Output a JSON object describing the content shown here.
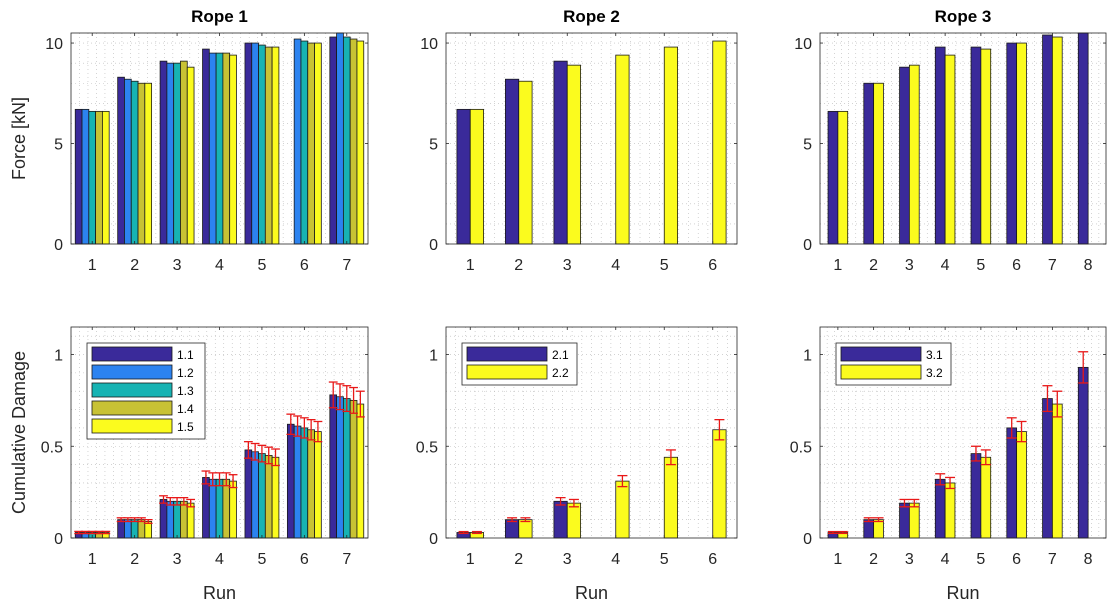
{
  "colors": {
    "1.1": "#3a2a9a",
    "1.2": "#2c83f0",
    "1.3": "#17b3b3",
    "1.4": "#c8c234",
    "1.5": "#fbfb1e",
    "2.1": "#3a2a9a",
    "2.2": "#fbfb1e",
    "3.1": "#3a2a9a",
    "3.2": "#fbfb1e",
    "errorbar": "#e81818"
  },
  "chart_data": [
    {
      "type": "bar",
      "title": "Rope 1",
      "xlabel": "",
      "ylabel": "Force [kN]",
      "categories": [
        "1",
        "2",
        "3",
        "4",
        "5",
        "6",
        "7"
      ],
      "xlim": [
        0.5,
        7.5
      ],
      "ylim": [
        0,
        10.5
      ],
      "yticks": [
        0,
        5,
        10
      ],
      "yticklabels": [
        "0",
        "5",
        "10"
      ],
      "grid": "minor dotted",
      "series": [
        {
          "key": "1.1",
          "values": [
            6.7,
            8.3,
            9.1,
            9.7,
            10.0,
            null,
            10.3
          ]
        },
        {
          "key": "1.2",
          "values": [
            6.7,
            8.2,
            9.0,
            9.5,
            10.0,
            10.2,
            10.5
          ]
        },
        {
          "key": "1.3",
          "values": [
            6.6,
            8.1,
            9.0,
            9.5,
            9.9,
            10.1,
            10.3
          ]
        },
        {
          "key": "1.4",
          "values": [
            6.6,
            8.0,
            9.1,
            9.5,
            9.8,
            10.0,
            10.2
          ]
        },
        {
          "key": "1.5",
          "values": [
            6.6,
            8.0,
            8.8,
            9.4,
            9.8,
            10.0,
            10.1
          ]
        }
      ]
    },
    {
      "type": "bar",
      "title": "Rope 2",
      "xlabel": "",
      "ylabel": "",
      "categories": [
        "1",
        "2",
        "3",
        "4",
        "5",
        "6"
      ],
      "xlim": [
        0.5,
        6.5
      ],
      "ylim": [
        0,
        10.5
      ],
      "yticks": [
        0,
        5,
        10
      ],
      "yticklabels": [
        "0",
        "5",
        "10"
      ],
      "grid": "minor dotted",
      "series": [
        {
          "key": "2.1",
          "values": [
            6.7,
            8.2,
            9.1,
            null,
            null,
            null
          ]
        },
        {
          "key": "2.2",
          "values": [
            6.7,
            8.1,
            8.9,
            9.4,
            9.8,
            10.1
          ]
        }
      ]
    },
    {
      "type": "bar",
      "title": "Rope 3",
      "xlabel": "",
      "ylabel": "",
      "categories": [
        "1",
        "2",
        "3",
        "4",
        "5",
        "6",
        "7",
        "8"
      ],
      "xlim": [
        0.5,
        8.5
      ],
      "ylim": [
        0,
        10.5
      ],
      "yticks": [
        0,
        5,
        10
      ],
      "yticklabels": [
        "0",
        "5",
        "10"
      ],
      "grid": "minor dotted",
      "series": [
        {
          "key": "3.1",
          "values": [
            6.6,
            8.0,
            8.8,
            9.8,
            9.8,
            10.0,
            10.4,
            10.5
          ]
        },
        {
          "key": "3.2",
          "values": [
            6.6,
            8.0,
            8.9,
            9.4,
            9.7,
            10.0,
            10.3,
            null
          ]
        }
      ]
    },
    {
      "type": "bar",
      "title": "",
      "xlabel": "Run",
      "ylabel": "Cumulative Damage",
      "categories": [
        "1",
        "2",
        "3",
        "4",
        "5",
        "6",
        "7"
      ],
      "xlim": [
        0.5,
        7.5
      ],
      "ylim": [
        0,
        1.15
      ],
      "yticks": [
        0,
        0.5,
        1
      ],
      "yticklabels": [
        "0",
        "0.5",
        "1"
      ],
      "grid": "minor dotted",
      "legend": {
        "position": "top-left",
        "entries": [
          "1.1",
          "1.2",
          "1.3",
          "1.4",
          "1.5"
        ]
      },
      "series": [
        {
          "key": "1.1",
          "values": [
            0.03,
            0.1,
            0.21,
            0.33,
            0.48,
            0.62,
            0.78
          ],
          "errors": [
            0.006,
            0.01,
            0.02,
            0.035,
            0.045,
            0.055,
            0.07
          ]
        },
        {
          "key": "1.2",
          "values": [
            0.03,
            0.1,
            0.2,
            0.32,
            0.47,
            0.61,
            0.77
          ],
          "errors": [
            0.006,
            0.01,
            0.02,
            0.035,
            0.045,
            0.055,
            0.07
          ]
        },
        {
          "key": "1.3",
          "values": [
            0.03,
            0.1,
            0.2,
            0.32,
            0.46,
            0.6,
            0.76
          ],
          "errors": [
            0.006,
            0.01,
            0.02,
            0.035,
            0.045,
            0.055,
            0.07
          ]
        },
        {
          "key": "1.4",
          "values": [
            0.03,
            0.1,
            0.2,
            0.32,
            0.45,
            0.59,
            0.75
          ],
          "errors": [
            0.006,
            0.01,
            0.02,
            0.035,
            0.045,
            0.055,
            0.07
          ]
        },
        {
          "key": "1.5",
          "values": [
            0.03,
            0.09,
            0.19,
            0.31,
            0.44,
            0.58,
            0.73
          ],
          "errors": [
            0.006,
            0.01,
            0.02,
            0.035,
            0.045,
            0.055,
            0.07
          ]
        }
      ]
    },
    {
      "type": "bar",
      "title": "",
      "xlabel": "Run",
      "ylabel": "",
      "categories": [
        "1",
        "2",
        "3",
        "4",
        "5",
        "6"
      ],
      "xlim": [
        0.5,
        6.5
      ],
      "ylim": [
        0,
        1.15
      ],
      "yticks": [
        0,
        0.5,
        1
      ],
      "yticklabels": [
        "0",
        "0.5",
        "1"
      ],
      "grid": "minor dotted",
      "legend": {
        "position": "top-left",
        "entries": [
          "2.1",
          "2.2"
        ]
      },
      "series": [
        {
          "key": "2.1",
          "values": [
            0.03,
            0.1,
            0.2,
            null,
            null,
            null
          ],
          "errors": [
            0.005,
            0.01,
            0.02,
            null,
            null,
            null
          ]
        },
        {
          "key": "2.2",
          "values": [
            0.03,
            0.1,
            0.19,
            0.31,
            0.44,
            0.59
          ],
          "errors": [
            0.005,
            0.01,
            0.02,
            0.03,
            0.04,
            0.055
          ]
        }
      ]
    },
    {
      "type": "bar",
      "title": "",
      "xlabel": "Run",
      "ylabel": "",
      "categories": [
        "1",
        "2",
        "3",
        "4",
        "5",
        "6",
        "7",
        "8"
      ],
      "xlim": [
        0.5,
        8.5
      ],
      "ylim": [
        0,
        1.15
      ],
      "yticks": [
        0,
        0.5,
        1
      ],
      "yticklabels": [
        "0",
        "0.5",
        "1"
      ],
      "grid": "minor dotted",
      "legend": {
        "position": "top-left",
        "entries": [
          "3.1",
          "3.2"
        ]
      },
      "series": [
        {
          "key": "3.1",
          "values": [
            0.03,
            0.1,
            0.19,
            0.32,
            0.46,
            0.6,
            0.76,
            0.93
          ],
          "errors": [
            0.005,
            0.01,
            0.02,
            0.03,
            0.04,
            0.055,
            0.07,
            0.085
          ]
        },
        {
          "key": "3.2",
          "values": [
            0.03,
            0.1,
            0.19,
            0.3,
            0.44,
            0.58,
            0.73,
            null
          ],
          "errors": [
            0.005,
            0.01,
            0.02,
            0.03,
            0.04,
            0.055,
            0.07,
            null
          ]
        }
      ]
    }
  ]
}
